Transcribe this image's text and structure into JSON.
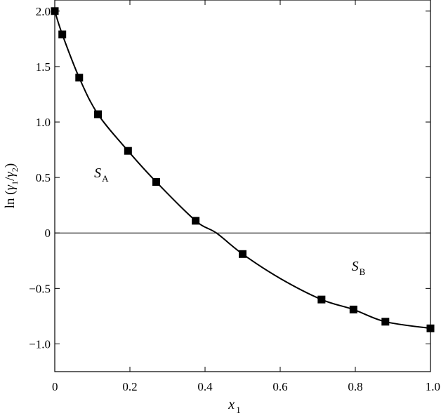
{
  "chart_data": {
    "type": "scatter",
    "title": "",
    "xlabel": {
      "main": "x",
      "sub": "1"
    },
    "ylabel": {
      "pre": "ln (",
      "g1": "γ",
      "s1": "1",
      "slash": "/",
      "g2": "γ",
      "s2": "2",
      "post": ")"
    },
    "xlim": [
      0,
      1.0
    ],
    "ylim": [
      -1.25,
      2.1
    ],
    "xticks": [
      {
        "value": 0,
        "label": "0"
      },
      {
        "value": 0.2,
        "label": "0.2"
      },
      {
        "value": 0.4,
        "label": "0.4"
      },
      {
        "value": 0.6,
        "label": "0.6"
      },
      {
        "value": 0.8,
        "label": "0.8"
      },
      {
        "value": 1.0,
        "label": "1.0"
      }
    ],
    "yticks": [
      {
        "value": 2.0,
        "label": "2.0"
      },
      {
        "value": 1.5,
        "label": "1.5"
      },
      {
        "value": 1.0,
        "label": "1.0"
      },
      {
        "value": 0.5,
        "label": "0.5"
      },
      {
        "value": 0,
        "label": "0"
      },
      {
        "value": -0.5,
        "label": "−0.5"
      },
      {
        "value": -1.0,
        "label": "−1.0"
      }
    ],
    "zero_line": true,
    "grid": false,
    "series": [
      {
        "marker": "square",
        "color": "#000000",
        "x": [
          0.0,
          0.02,
          0.065,
          0.115,
          0.195,
          0.27,
          0.375,
          0.5,
          0.71,
          0.795,
          0.88,
          1.0
        ],
        "y": [
          2.0,
          1.79,
          1.4,
          1.07,
          0.74,
          0.46,
          0.11,
          -0.19,
          -0.6,
          -0.69,
          -0.8,
          -0.86
        ]
      }
    ],
    "fit_curve": {
      "x": [
        0.0,
        0.02,
        0.065,
        0.115,
        0.195,
        0.27,
        0.375,
        0.43,
        0.5,
        0.6,
        0.71,
        0.795,
        0.88,
        1.0
      ],
      "y": [
        2.0,
        1.79,
        1.4,
        1.07,
        0.74,
        0.46,
        0.11,
        0.0,
        -0.19,
        -0.41,
        -0.6,
        -0.69,
        -0.8,
        -0.86
      ]
    },
    "annotations": [
      {
        "main": "S",
        "sub": "A",
        "x": 0.105,
        "y": 0.5
      },
      {
        "main": "S",
        "sub": "B",
        "x": 0.79,
        "y": -0.34
      }
    ]
  }
}
